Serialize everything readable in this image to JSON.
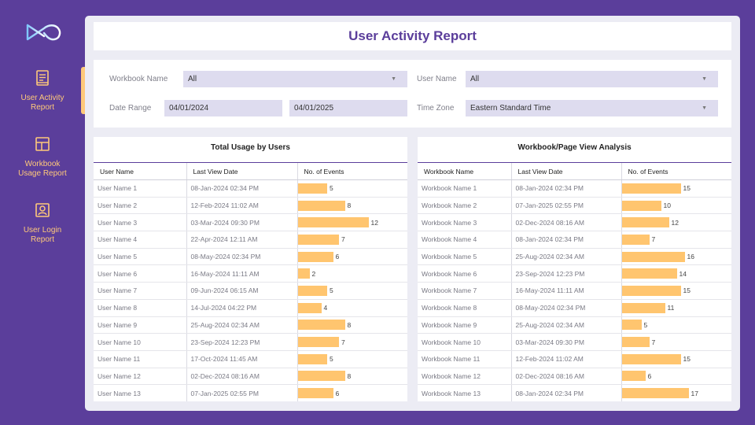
{
  "sidebar": {
    "items": [
      {
        "label_line1": "User Activity",
        "label_line2": "Report",
        "icon": "report-icon"
      },
      {
        "label_line1": "Workbook",
        "label_line2": "Usage Report",
        "icon": "layout-icon"
      },
      {
        "label_line1": "User Login",
        "label_line2": "Report",
        "icon": "user-card-icon"
      }
    ]
  },
  "header": {
    "title": "User Activity Report"
  },
  "filters": {
    "workbook_name": {
      "label": "Workbook Name",
      "value": "All"
    },
    "user_name": {
      "label": "User Name",
      "value": "All"
    },
    "date_range": {
      "label": "Date Range",
      "start": "04/01/2024",
      "end": "04/01/2025"
    },
    "time_zone": {
      "label": "Time Zone",
      "value": "Eastern Standard Time"
    }
  },
  "colors": {
    "brand": "#5b3e9b",
    "accent": "#ffc97a",
    "bar": "#ffc56f"
  },
  "usage_table": {
    "title": "Total Usage by Users",
    "columns": [
      "User Name",
      "Last View Date",
      "No. of Events"
    ],
    "max_events": 12,
    "rows": [
      {
        "name": "User Name 1",
        "date": "08-Jan-2024 02:34 PM",
        "events": 5
      },
      {
        "name": "User Name 2",
        "date": "12-Feb-2024 11:02 AM",
        "events": 8
      },
      {
        "name": "User Name 3",
        "date": "03-Mar-2024 09:30 PM",
        "events": 12
      },
      {
        "name": "User Name 4",
        "date": "22-Apr-2024 12:11 AM",
        "events": 7
      },
      {
        "name": "User Name 5",
        "date": "08-May-2024 02:34 PM",
        "events": 6
      },
      {
        "name": "User Name 6",
        "date": "16-May-2024 11:11 AM",
        "events": 2
      },
      {
        "name": "User Name 7",
        "date": "09-Jun-2024 06:15 AM",
        "events": 5
      },
      {
        "name": "User Name 8",
        "date": "14-Jul-2024 04:22 PM",
        "events": 4
      },
      {
        "name": "User Name 9",
        "date": "25-Aug-2024 02:34 AM",
        "events": 8
      },
      {
        "name": "User Name 10",
        "date": "23-Sep-2024 12:23 PM",
        "events": 7
      },
      {
        "name": "User Name 11",
        "date": "17-Oct-2024 11:45 AM",
        "events": 5
      },
      {
        "name": "User Name 12",
        "date": "02-Dec-2024 08:16 AM",
        "events": 8
      },
      {
        "name": "User Name 13",
        "date": "07-Jan-2025 02:55 PM",
        "events": 6
      }
    ]
  },
  "workbook_table": {
    "title": "Workbook/Page View Analysis",
    "columns": [
      "Workbook Name",
      "Last View Date",
      "No. of Events"
    ],
    "max_events": 17,
    "rows": [
      {
        "name": "Workbook Name 1",
        "date": "08-Jan-2024 02:34 PM",
        "events": 15
      },
      {
        "name": "Workbook Name 2",
        "date": "07-Jan-2025 02:55 PM",
        "events": 10
      },
      {
        "name": "Workbook Name 3",
        "date": "02-Dec-2024 08:16 AM",
        "events": 12
      },
      {
        "name": "Workbook Name 4",
        "date": "08-Jan-2024 02:34 PM",
        "events": 7
      },
      {
        "name": "Workbook Name 5",
        "date": "25-Aug-2024 02:34 AM",
        "events": 16
      },
      {
        "name": "Workbook Name 6",
        "date": "23-Sep-2024 12:23 PM",
        "events": 14
      },
      {
        "name": "Workbook Name 7",
        "date": "16-May-2024 11:11 AM",
        "events": 15
      },
      {
        "name": "Workbook Name 8",
        "date": "08-May-2024 02:34 PM",
        "events": 11
      },
      {
        "name": "Workbook Name 9",
        "date": "25-Aug-2024 02:34 AM",
        "events": 5
      },
      {
        "name": "Workbook Name 10",
        "date": "03-Mar-2024 09:30 PM",
        "events": 7
      },
      {
        "name": "Workbook Name 11",
        "date": "12-Feb-2024 11:02 AM",
        "events": 15
      },
      {
        "name": "Workbook Name 12",
        "date": "02-Dec-2024 08:16 AM",
        "events": 6
      },
      {
        "name": "Workbook Name 13",
        "date": "08-Jan-2024 02:34 PM",
        "events": 17
      }
    ]
  }
}
